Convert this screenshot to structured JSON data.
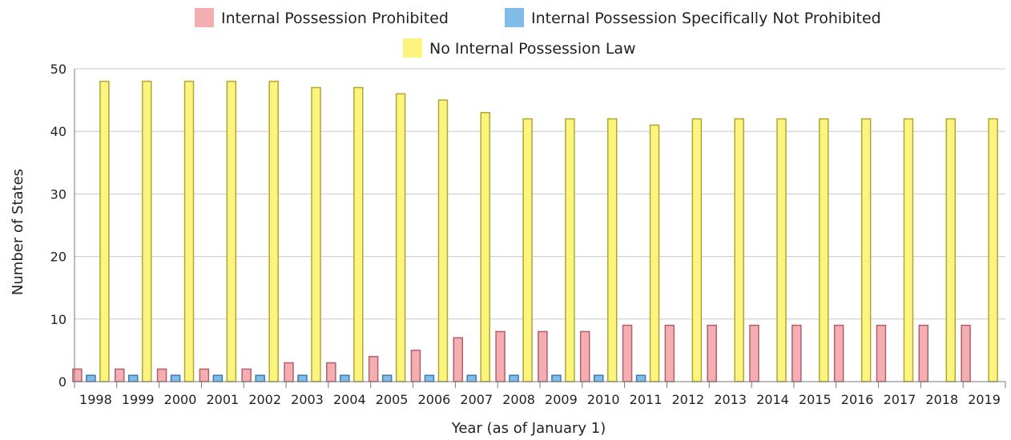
{
  "chart_data": {
    "type": "bar",
    "xlabel": "Year (as of January 1)",
    "ylabel": "Number of States",
    "ylim": [
      0,
      50
    ],
    "yticks": [
      0,
      10,
      20,
      30,
      40,
      50
    ],
    "grid": true,
    "legend_position": "top",
    "categories": [
      "1998",
      "1999",
      "2000",
      "2001",
      "2002",
      "2003",
      "2004",
      "2005",
      "2006",
      "2007",
      "2008",
      "2009",
      "2010",
      "2011",
      "2012",
      "2013",
      "2014",
      "2015",
      "2016",
      "2017",
      "2018",
      "2019"
    ],
    "series": [
      {
        "name": "Internal Possession Prohibited",
        "color": "#f4aeb1",
        "edge": "#b0606a",
        "values": [
          2,
          2,
          2,
          2,
          2,
          3,
          3,
          4,
          5,
          7,
          8,
          8,
          8,
          9,
          9,
          9,
          9,
          9,
          9,
          9,
          9,
          9
        ]
      },
      {
        "name": "Internal Possession Specifically Not Prohibited",
        "color": "#7fbde8",
        "edge": "#3f78aa",
        "values": [
          1,
          1,
          1,
          1,
          1,
          1,
          1,
          1,
          1,
          1,
          1,
          1,
          1,
          1,
          0,
          0,
          0,
          0,
          0,
          0,
          0,
          0
        ]
      },
      {
        "name": "No Internal Possession Law",
        "color": "#fbf57d",
        "edge": "#b1a536",
        "values": [
          48,
          48,
          48,
          48,
          48,
          47,
          47,
          46,
          45,
          43,
          42,
          42,
          42,
          41,
          42,
          42,
          42,
          42,
          42,
          42,
          42,
          42
        ]
      }
    ]
  }
}
